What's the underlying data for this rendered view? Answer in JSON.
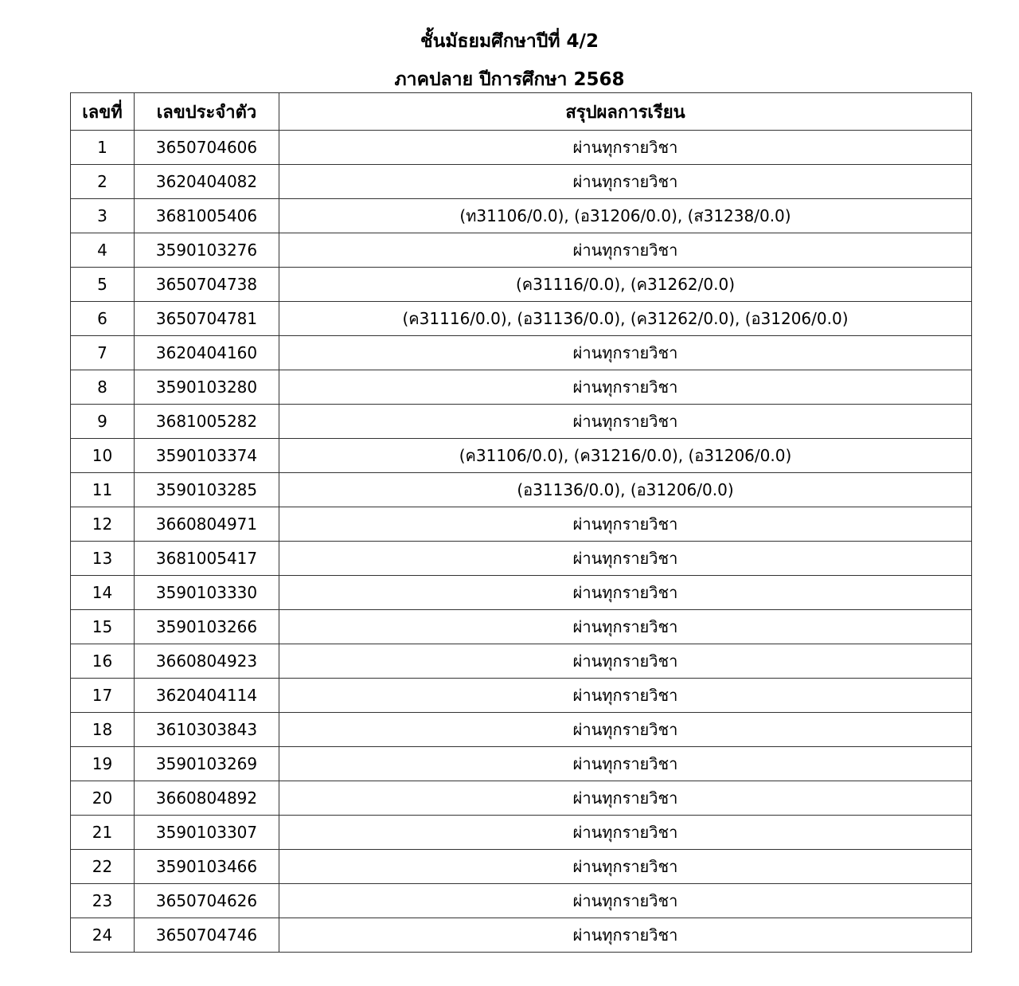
{
  "header": {
    "title": "ชั้นมัธยมศึกษาปีที่ 4/2",
    "subtitle": "ภาคปลาย ปีการศึกษา 2568"
  },
  "table": {
    "columns": [
      "เลขที่",
      "เลขประจำตัว",
      "สรุปผลการเรียน"
    ],
    "rows": [
      {
        "no": "1",
        "id": "3650704606",
        "result": "ผ่านทุกรายวิชา"
      },
      {
        "no": "2",
        "id": "3620404082",
        "result": "ผ่านทุกรายวิชา"
      },
      {
        "no": "3",
        "id": "3681005406",
        "result": "(ท31106/0.0), (อ31206/0.0), (ส31238/0.0)"
      },
      {
        "no": "4",
        "id": "3590103276",
        "result": "ผ่านทุกรายวิชา"
      },
      {
        "no": "5",
        "id": "3650704738",
        "result": "(ค31116/0.0), (ค31262/0.0)"
      },
      {
        "no": "6",
        "id": "3650704781",
        "result": "(ค31116/0.0), (อ31136/0.0), (ค31262/0.0), (อ31206/0.0)"
      },
      {
        "no": "7",
        "id": "3620404160",
        "result": "ผ่านทุกรายวิชา"
      },
      {
        "no": "8",
        "id": "3590103280",
        "result": "ผ่านทุกรายวิชา"
      },
      {
        "no": "9",
        "id": "3681005282",
        "result": "ผ่านทุกรายวิชา"
      },
      {
        "no": "10",
        "id": "3590103374",
        "result": "(ค31106/0.0), (ค31216/0.0), (อ31206/0.0)"
      },
      {
        "no": "11",
        "id": "3590103285",
        "result": "(อ31136/0.0), (อ31206/0.0)"
      },
      {
        "no": "12",
        "id": "3660804971",
        "result": "ผ่านทุกรายวิชา"
      },
      {
        "no": "13",
        "id": "3681005417",
        "result": "ผ่านทุกรายวิชา"
      },
      {
        "no": "14",
        "id": "3590103330",
        "result": "ผ่านทุกรายวิชา"
      },
      {
        "no": "15",
        "id": "3590103266",
        "result": "ผ่านทุกรายวิชา"
      },
      {
        "no": "16",
        "id": "3660804923",
        "result": "ผ่านทุกรายวิชา"
      },
      {
        "no": "17",
        "id": "3620404114",
        "result": "ผ่านทุกรายวิชา"
      },
      {
        "no": "18",
        "id": "3610303843",
        "result": "ผ่านทุกรายวิชา"
      },
      {
        "no": "19",
        "id": "3590103269",
        "result": "ผ่านทุกรายวิชา"
      },
      {
        "no": "20",
        "id": "3660804892",
        "result": "ผ่านทุกรายวิชา"
      },
      {
        "no": "21",
        "id": "3590103307",
        "result": "ผ่านทุกรายวิชา"
      },
      {
        "no": "22",
        "id": "3590103466",
        "result": "ผ่านทุกรายวิชา"
      },
      {
        "no": "23",
        "id": "3650704626",
        "result": "ผ่านทุกรายวิชา"
      },
      {
        "no": "24",
        "id": "3650704746",
        "result": "ผ่านทุกรายวิชา"
      }
    ]
  }
}
